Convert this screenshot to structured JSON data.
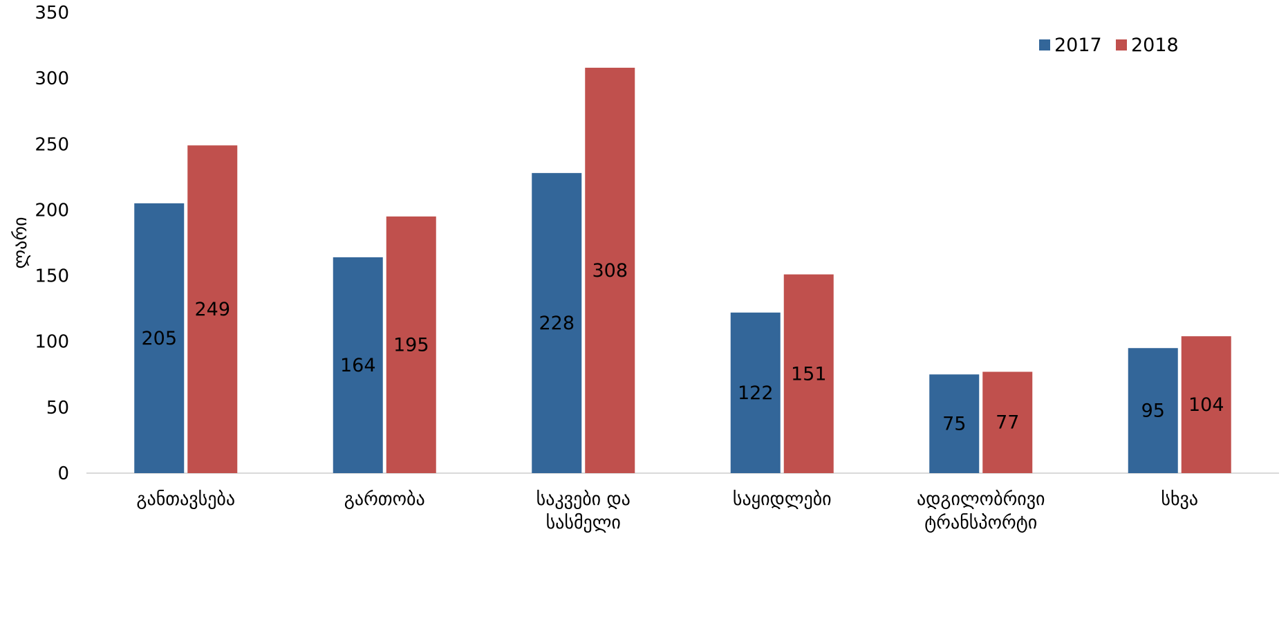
{
  "chart_data": {
    "type": "bar",
    "categories": [
      [
        "განთავსება"
      ],
      [
        "გართობა"
      ],
      [
        "საკვები და",
        "სასმელი"
      ],
      [
        "საყიდლები"
      ],
      [
        "ადგილობრივი",
        "ტრანსპორტი"
      ],
      [
        "სხვა"
      ]
    ],
    "series": [
      {
        "name": "2017",
        "color": "#336699",
        "values": [
          205,
          164,
          228,
          122,
          75,
          95
        ]
      },
      {
        "name": "2018",
        "color": "#C0504D",
        "values": [
          249,
          195,
          308,
          151,
          77,
          104
        ]
      }
    ],
    "ylabel": "ლარი",
    "ylim": [
      0,
      350
    ],
    "yticks": [
      0,
      50,
      100,
      150,
      200,
      250,
      300,
      350
    ],
    "grid": false,
    "legend_position": "top-right"
  }
}
